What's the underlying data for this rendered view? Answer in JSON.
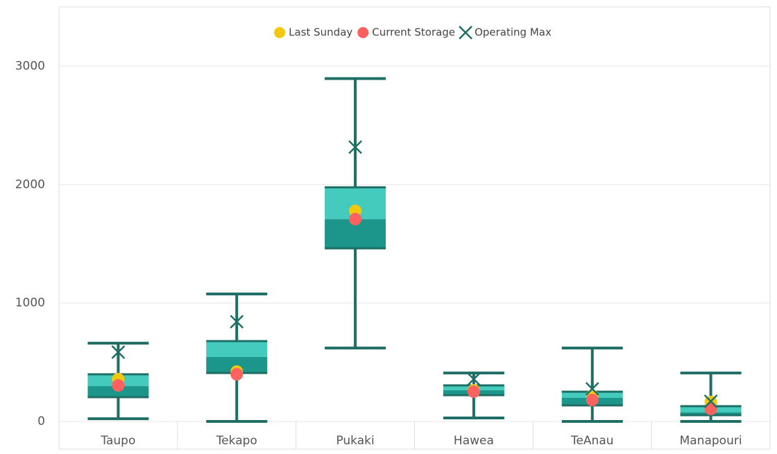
{
  "chart_data": {
    "type": "box",
    "categories": [
      "Taupo",
      "Tekapo",
      "Pukaki",
      "Hawea",
      "TeAnau",
      "Manapouri"
    ],
    "min": [
      23,
      0,
      620,
      29,
      0,
      0
    ],
    "q1": [
      205,
      409,
      1462,
      222,
      135,
      53
    ],
    "median": [
      298,
      544,
      1708,
      263,
      199,
      76
    ],
    "q3": [
      398,
      678,
      1977,
      304,
      251,
      129
    ],
    "max": [
      661,
      1076,
      2895,
      409,
      620,
      409
    ],
    "box_colors": {
      "upper": "#45cbbd",
      "lower": "#1c968a",
      "whisker": "#1f6e65"
    },
    "series": [
      {
        "name": "Last Sunday",
        "color": "#f2c80f",
        "marker": "circle",
        "values": [
          357,
          421,
          1778,
          263,
          216,
          164
        ]
      },
      {
        "name": "Current Storage",
        "color": "#fd625e",
        "marker": "circle",
        "values": [
          304,
          398,
          1708,
          251,
          181,
          105
        ]
      },
      {
        "name": "Operating Max",
        "color": "#1f6e65",
        "marker": "x",
        "values": [
          585,
          842,
          2316,
          357,
          275,
          170
        ]
      }
    ],
    "ylim": [
      0,
      3500
    ],
    "yticks": [
      0,
      1000,
      2000,
      3000
    ],
    "grid": true,
    "legend": "top"
  }
}
